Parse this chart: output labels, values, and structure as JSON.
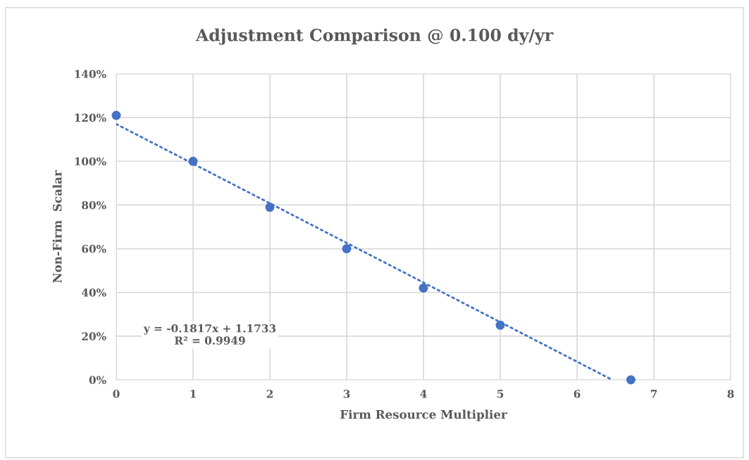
{
  "chart_data": {
    "type": "scatter",
    "title": "Adjustment Comparison @ 0.100 dy/yr",
    "xlabel": "Firm Resource Multiplier",
    "ylabel": "Non-Firm  Scalar",
    "series": [
      {
        "type": "line",
        "color": "#4472c4",
        "x": [
          0,
          6.457
        ],
        "values": [
          117,
          0
        ],
        "line_style": "dotted",
        "marker": "none"
      },
      {
        "color": "#4472c4",
        "x": [
          0,
          1,
          2,
          3,
          4,
          5
        ],
        "values": [
          121,
          100,
          79,
          60,
          42,
          25
        ],
        "marker": "circle"
      },
      {
        "color": "#4472c4",
        "x": [
          6.7
        ],
        "values": [
          0
        ],
        "marker": "circle"
      }
    ],
    "annotations": [
      "y = -0.1817x + 1.1733\nR² = 0.9949"
    ],
    "xlim": [
      0,
      8
    ],
    "xticks": [
      0,
      1,
      2,
      3,
      4,
      5,
      6,
      7,
      8
    ],
    "ylim": [
      0,
      140
    ],
    "yticks": [
      {
        "value": 0,
        "label": "0%"
      },
      {
        "value": 20,
        "label": "20%"
      },
      {
        "value": 40,
        "label": "40%"
      },
      {
        "value": 60,
        "label": "60%"
      },
      {
        "value": 80,
        "label": "80%"
      },
      {
        "value": 100,
        "label": "100%"
      },
      {
        "value": 120,
        "label": "120%"
      },
      {
        "value": 140,
        "label": "140%"
      }
    ],
    "grid": true,
    "legend": false
  }
}
